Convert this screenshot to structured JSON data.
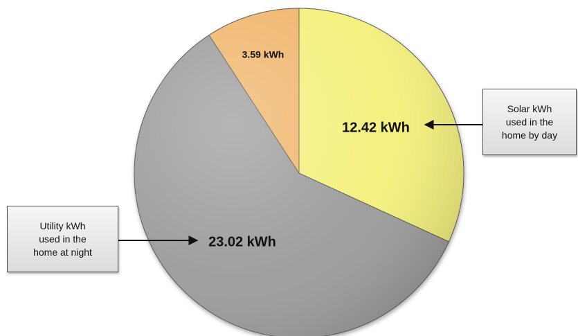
{
  "chart_data": {
    "type": "pie",
    "slices": [
      {
        "label": "12.42 kWh",
        "value": 12.42,
        "color": "#f4f07a"
      },
      {
        "label": "23.02 kWh",
        "value": 23.02,
        "color": "#9a9a9a"
      },
      {
        "label": "3.59 kWh",
        "value": 3.59,
        "color": "#f0b468"
      }
    ],
    "start_angle_deg": 0,
    "direction": "clockwise",
    "annotations": [
      {
        "text_lines": [
          "Solar kWh",
          "used in the",
          "home by day"
        ],
        "points_to": "12.42 kWh"
      },
      {
        "text_lines": [
          "Utility kWh",
          "used in the",
          "home at night"
        ],
        "points_to": "23.02 kWh"
      }
    ]
  }
}
